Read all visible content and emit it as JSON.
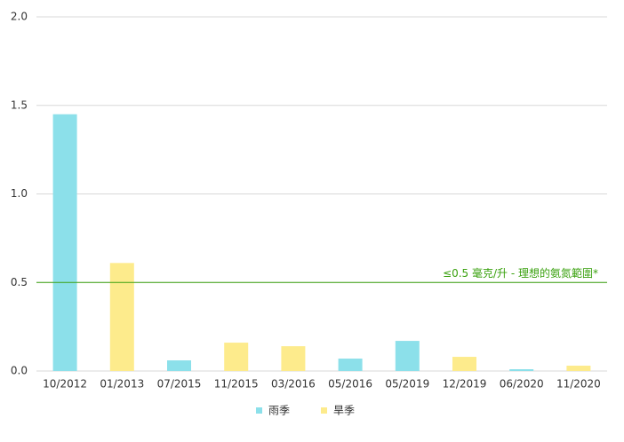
{
  "chart_data": {
    "type": "bar",
    "categories": [
      "10/2012",
      "01/2013",
      "07/2015",
      "11/2015",
      "03/2016",
      "05/2016",
      "05/2019",
      "12/2019",
      "06/2020",
      "11/2020"
    ],
    "series": [
      {
        "name": "雨季",
        "color": "#8ce0ea",
        "values": [
          1.45,
          null,
          0.06,
          null,
          null,
          0.07,
          0.17,
          null,
          0.01,
          null
        ]
      },
      {
        "name": "旱季",
        "color": "#fdeb8c",
        "values": [
          null,
          0.61,
          null,
          0.16,
          0.14,
          null,
          null,
          0.08,
          null,
          0.03
        ]
      }
    ],
    "ylim": [
      0,
      2
    ],
    "yticks": [
      {
        "value": 0,
        "label": "0.0"
      },
      0.5,
      {
        "value": 1,
        "label": "1.0"
      },
      1.5,
      {
        "value": 2,
        "label": "2.0"
      }
    ],
    "grid": true,
    "legend": "bottom",
    "reference_line": {
      "value": 0.5,
      "label": "≤0.5 毫克/升 - 理想的氨氮範圍*",
      "color": "#3aa10f"
    }
  }
}
